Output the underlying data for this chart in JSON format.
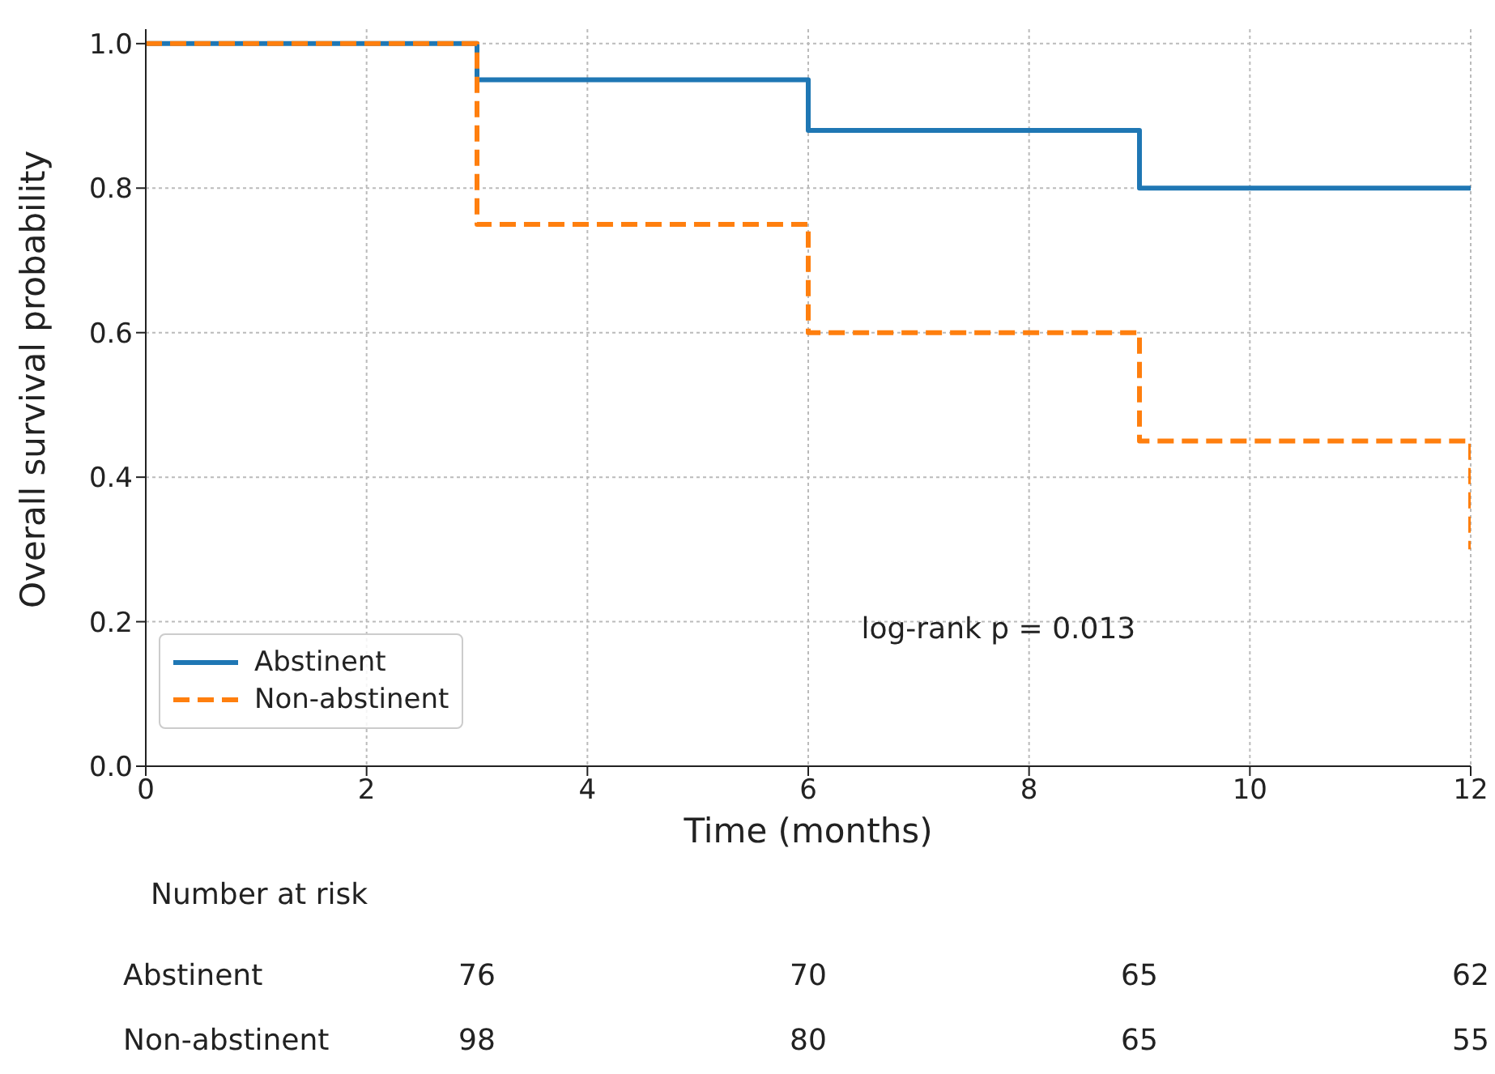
{
  "chart_data": {
    "type": "step",
    "xlabel": "Time (months)",
    "ylabel": "Overall survival probability",
    "series": [
      {
        "name": "Abstinent",
        "color": "#1f77b4",
        "x": [
          0,
          3,
          6,
          9,
          12
        ],
        "values": [
          1.0,
          0.95,
          0.88,
          0.8,
          0.8
        ],
        "line_style": "solid"
      },
      {
        "name": "Non-abstinent",
        "color": "#ff7f0e",
        "x": [
          0,
          3,
          6,
          9,
          12
        ],
        "values": [
          1.0,
          0.75,
          0.6,
          0.45,
          0.3
        ],
        "line_style": "dashed"
      }
    ],
    "xlim": [
      0,
      12
    ],
    "xticks": [
      0,
      2,
      4,
      6,
      8,
      10,
      12
    ],
    "ylim": [
      0,
      1.02
    ],
    "yticks": [
      {
        "value": 0,
        "label": "0.0"
      },
      {
        "value": 0.2,
        "label": "0.2"
      },
      {
        "value": 0.4,
        "label": "0.4"
      },
      {
        "value": 0.6,
        "label": "0.6"
      },
      {
        "value": 0.8,
        "label": "0.8"
      },
      {
        "value": 1,
        "label": "1.0"
      }
    ],
    "grid": true,
    "legend": "bottom left",
    "marker": "none",
    "annotations": [
      "log-rank p = 0.013",
      "Number at risk",
      "Abstinent",
      "76",
      "70",
      "65",
      "62",
      "Non-abstinent",
      "98",
      "80",
      "65",
      "55"
    ]
  }
}
